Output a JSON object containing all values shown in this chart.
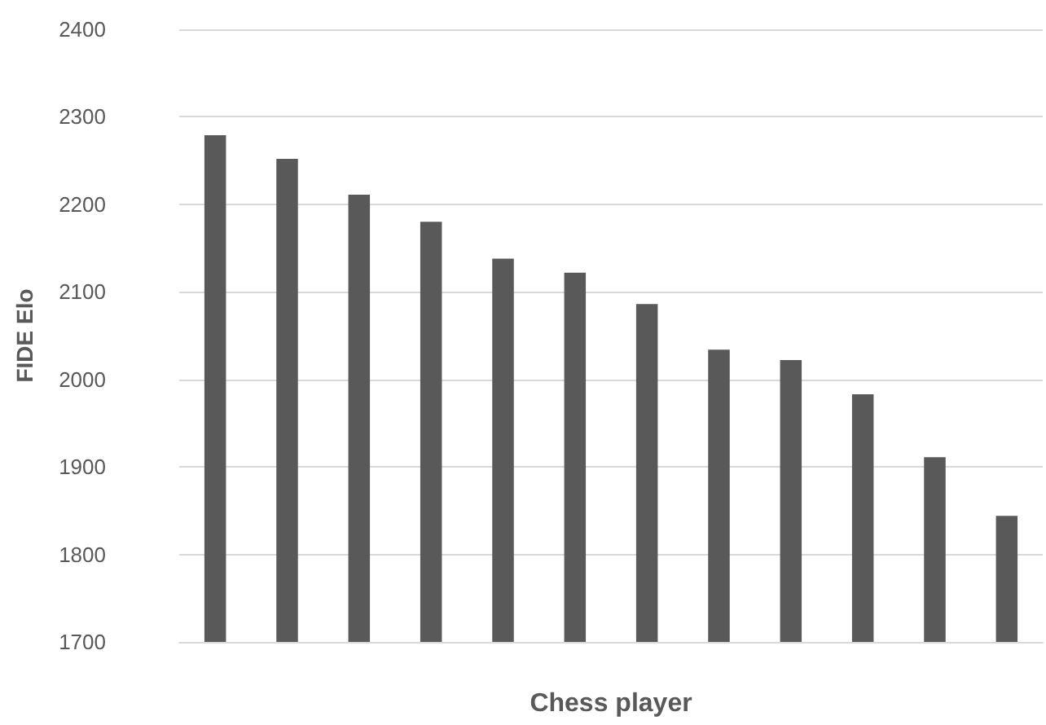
{
  "chart_data": {
    "type": "bar",
    "xlabel": "Chess player",
    "ylabel": "FIDE Elo",
    "categories": [
      null,
      null,
      null,
      null,
      null,
      null,
      null,
      null,
      null,
      null,
      null,
      null
    ],
    "values": [
      2279,
      2252,
      2211,
      2180,
      2138,
      2122,
      2086,
      2034,
      2022,
      1983,
      1911,
      1844
    ],
    "color": "#595959",
    "ylim": [
      1700,
      2400
    ],
    "yticks": [
      1700,
      1800,
      1900,
      2000,
      2100,
      2200,
      2300,
      2400
    ],
    "grid": "y"
  }
}
